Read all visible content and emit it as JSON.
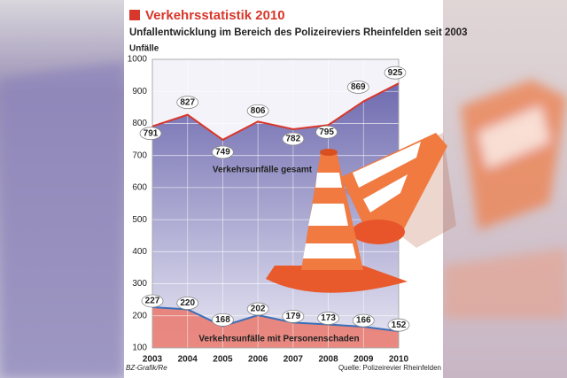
{
  "chart_data": {
    "type": "area",
    "title": "Verkehrsstatistik 2010",
    "subtitle": "Unfallentwicklung im Bereich des Polizeireviers Rheinfelden seit 2003",
    "y_label": "Unfälle",
    "credit": "BZ-Grafik/Re",
    "source": "Quelle: Polizeirevier Rheinfelden",
    "categories": [
      "2003",
      "2004",
      "2005",
      "2006",
      "2007",
      "2008",
      "2009",
      "2010"
    ],
    "series": [
      {
        "name": "Verkehrsunfälle gesamt",
        "color": "#8d8ac4",
        "line_color": "#d8372b",
        "values": [
          791,
          827,
          749,
          806,
          782,
          795,
          869,
          925
        ]
      },
      {
        "name": "Verkehrsunfälle mit Personenschaden",
        "color": "#e9786c",
        "line_color": "#3a6fb8",
        "values": [
          227,
          220,
          168,
          202,
          179,
          173,
          166,
          152
        ]
      }
    ],
    "ylim": [
      100,
      1000
    ],
    "yticks": [
      100,
      200,
      300,
      400,
      500,
      600,
      700,
      800,
      900,
      1000
    ],
    "grid": true
  }
}
